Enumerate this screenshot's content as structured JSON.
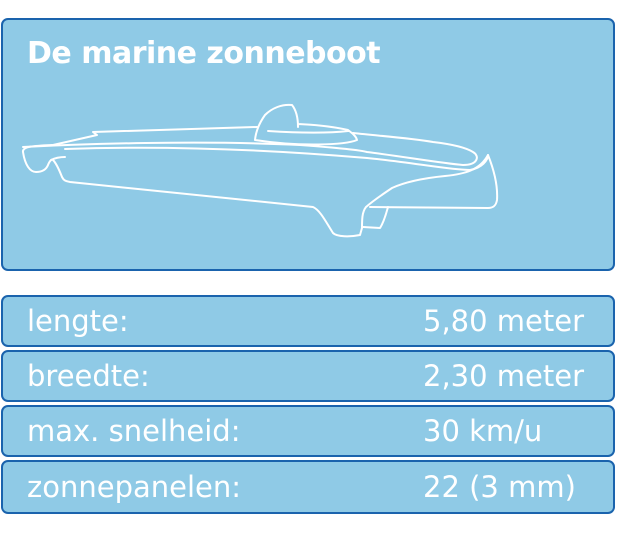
{
  "title": "De marine zonneboot",
  "colors": {
    "panel_fill": "#8fcae6",
    "panel_border": "#1a63ad",
    "text": "#ffffff"
  },
  "image": "solar-boat-outline",
  "specs": [
    {
      "label": "lengte:",
      "value": "5,80 meter"
    },
    {
      "label": "breedte:",
      "value": "2,30 meter"
    },
    {
      "label": "max. snelheid:",
      "value": "30 km/u"
    },
    {
      "label": "zonnepanelen:",
      "value": "22 (3 mm)"
    }
  ]
}
